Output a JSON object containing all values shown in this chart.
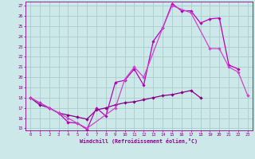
{
  "xlabel": "Windchill (Refroidissement éolien,°C)",
  "xlim": [
    -0.5,
    23.5
  ],
  "ylim": [
    14.8,
    27.4
  ],
  "xticks": [
    0,
    1,
    2,
    3,
    4,
    5,
    6,
    7,
    8,
    9,
    10,
    11,
    12,
    13,
    14,
    15,
    16,
    17,
    18,
    19,
    20,
    21,
    22,
    23
  ],
  "yticks": [
    15,
    16,
    17,
    18,
    19,
    20,
    21,
    22,
    23,
    24,
    25,
    26,
    27
  ],
  "bg_color": "#cce8e8",
  "grid_color": "#aacccc",
  "line_color1": "#bb00bb",
  "line_color2": "#880088",
  "line_color3": "#cc44cc",
  "line1_x": [
    0,
    1,
    2,
    3,
    4,
    5,
    6,
    7,
    8,
    9,
    10,
    11,
    12,
    13,
    14,
    15,
    16,
    17,
    18,
    19,
    20,
    21,
    22
  ],
  "line1_y": [
    18.0,
    17.5,
    17.0,
    16.5,
    15.6,
    15.5,
    14.9,
    17.0,
    16.2,
    19.5,
    19.7,
    20.8,
    19.2,
    23.5,
    24.8,
    27.2,
    26.5,
    26.5,
    25.3,
    25.7,
    25.8,
    21.2,
    20.8
  ],
  "line2_x": [
    0,
    1,
    2,
    3,
    4,
    5,
    6,
    7,
    8,
    9,
    10,
    11,
    12,
    13,
    14,
    15,
    16,
    17,
    18
  ],
  "line2_y": [
    18.0,
    17.3,
    17.0,
    16.5,
    16.3,
    16.1,
    15.9,
    16.8,
    17.0,
    17.3,
    17.5,
    17.6,
    17.8,
    18.0,
    18.2,
    18.3,
    18.5,
    18.7,
    18.0
  ],
  "line3_x": [
    0,
    2,
    3,
    4,
    5,
    6,
    9,
    10,
    11,
    12,
    14,
    15,
    17,
    19,
    20,
    21,
    22,
    23
  ],
  "line3_y": [
    18.0,
    17.0,
    16.5,
    16.0,
    15.5,
    15.0,
    17.0,
    19.8,
    21.0,
    20.0,
    24.8,
    27.0,
    26.3,
    22.8,
    22.8,
    21.0,
    20.5,
    18.2
  ]
}
